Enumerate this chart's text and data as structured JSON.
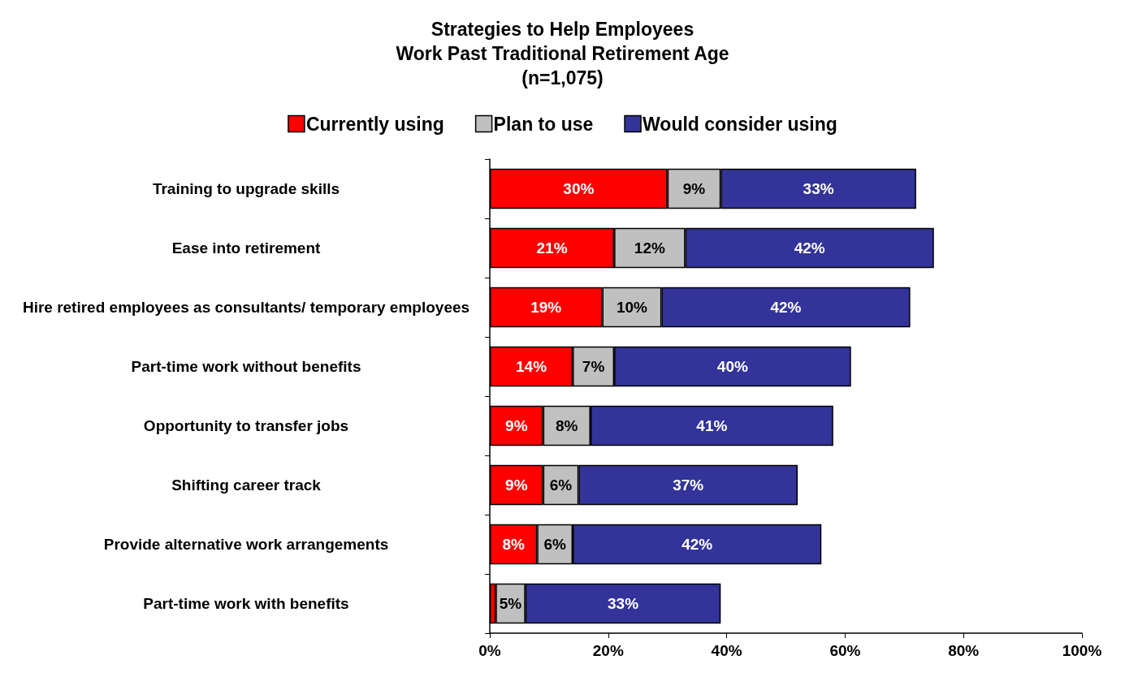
{
  "chart_data": {
    "type": "bar",
    "orientation": "horizontal",
    "stacked": true,
    "title": "Strategies to Help Employees\nWork Past Traditional Retirement Age\n(n=1,075)",
    "categories": [
      "Training to upgrade skills",
      "Ease into retirement",
      "Hire retired employees as consultants/ temporary employees",
      "Part-time work without benefits",
      "Opportunity to transfer jobs",
      "Shifting career track",
      "Provide alternative work arrangements",
      "Part-time work with benefits"
    ],
    "series": [
      {
        "name": "Currently using",
        "color": "#ff0000",
        "values": [
          30,
          21,
          19,
          14,
          9,
          9,
          8,
          1
        ],
        "value_labels": [
          "30%",
          "21%",
          "19%",
          "14%",
          "9%",
          "9%",
          "8%",
          null
        ]
      },
      {
        "name": "Plan to use",
        "color": "#c0c0c0",
        "values": [
          9,
          12,
          10,
          7,
          8,
          6,
          6,
          5
        ],
        "value_labels": [
          "9%",
          "12%",
          "10%",
          "7%",
          "8%",
          "6%",
          "6%",
          "5%"
        ]
      },
      {
        "name": "Would consider using",
        "color": "#333399",
        "values": [
          33,
          42,
          42,
          40,
          41,
          37,
          42,
          33
        ],
        "value_labels": [
          "33%",
          "42%",
          "42%",
          "40%",
          "41%",
          "37%",
          "42%",
          "33%"
        ]
      }
    ],
    "xlim": [
      0,
      100
    ],
    "xticks": [
      {
        "value": 0,
        "label": "0%"
      },
      {
        "value": 20,
        "label": "20%"
      },
      {
        "value": 40,
        "label": "40%"
      },
      {
        "value": 60,
        "label": "60%"
      },
      {
        "value": 80,
        "label": "80%"
      },
      {
        "value": 100,
        "label": "100%"
      }
    ],
    "grid": false,
    "legend": "top"
  }
}
